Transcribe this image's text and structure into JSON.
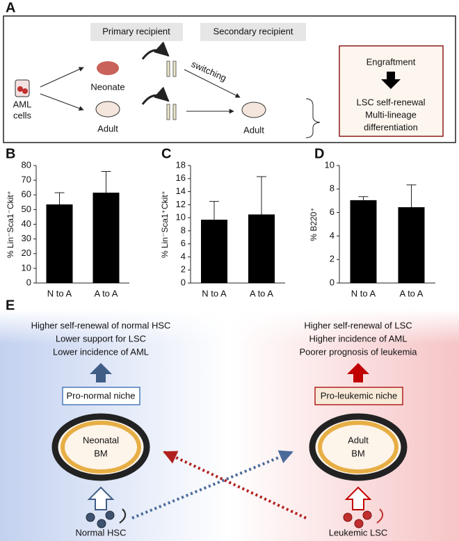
{
  "panel_a": {
    "label": "A",
    "primary_recipient": "Primary recipient",
    "secondary_recipient": "Secondary recipient",
    "aml_cells": [
      "AML",
      "cells"
    ],
    "neonate": "Neonate",
    "adult_primary": "Adult",
    "switching": "switching",
    "adult_secondary": "Adult",
    "outcome": [
      "Engraftment",
      "LSC self-renewal",
      "Multi-lineage",
      "differentiation"
    ]
  },
  "chart_data": [
    {
      "type": "bar",
      "panel": "B",
      "ylabel": "% Lin⁻Sca1⁻Ckit⁺",
      "categories": [
        "N to A",
        "A to A"
      ],
      "values": [
        53.5,
        61.5
      ],
      "errors": [
        8,
        14.5
      ],
      "color": "#000000",
      "ylim": [
        0,
        80
      ],
      "yticks": [
        0,
        10,
        20,
        30,
        40,
        50,
        60,
        70,
        80
      ]
    },
    {
      "type": "bar",
      "panel": "C",
      "ylabel": "% Lin⁻Sca1⁺Ckit⁺",
      "categories": [
        "N to A",
        "A to A"
      ],
      "values": [
        9.7,
        10.5
      ],
      "errors": [
        2.8,
        5.8
      ],
      "color": "#000000",
      "ylim": [
        0,
        18
      ],
      "yticks": [
        0,
        2,
        4,
        6,
        8,
        10,
        12,
        14,
        16,
        18
      ]
    },
    {
      "type": "bar",
      "panel": "D",
      "ylabel": "% B220⁺",
      "categories": [
        "N to A",
        "A to A"
      ],
      "values": [
        7.05,
        6.45
      ],
      "errors": [
        0.3,
        1.9
      ],
      "color": "#000000",
      "ylim": [
        0,
        10
      ],
      "yticks": [
        0,
        2,
        4,
        6,
        8,
        10
      ]
    }
  ],
  "panel_e": {
    "label": "E",
    "left_text": [
      "Higher self-renewal  of normal HSC",
      "Lower support for LSC",
      "Lower incidence of AML"
    ],
    "right_text": [
      "Higher self-renewal of LSC",
      "Higher incidence of AML",
      "Poorer prognosis of leukemia"
    ],
    "left_niche": "Pro-normal niche",
    "right_niche": "Pro-leukemic niche",
    "left_bm": [
      "Neonatal",
      "BM"
    ],
    "right_bm": [
      "Adult",
      "BM"
    ],
    "left_cells": "Normal HSC",
    "right_cells": "Leukemic LSC"
  }
}
